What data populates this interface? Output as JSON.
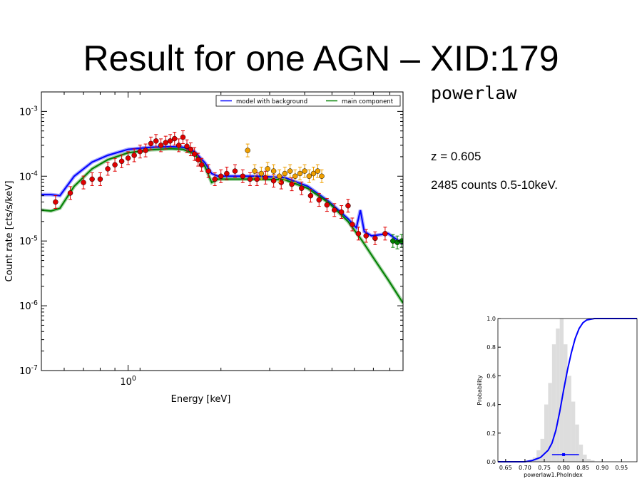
{
  "slide": {
    "title": "Result for one AGN – XID:179",
    "model_name": "powerlaw",
    "redshift_text": "z = 0.605",
    "counts_text": "2485 counts 0.5-10keV."
  },
  "chart_data": [
    {
      "type": "line",
      "xlabel": "Energy [keV]",
      "ylabel": "Count rate [cts/s/keV]",
      "xscale": "log",
      "yscale": "log",
      "xlim": [
        0.5,
        9
      ],
      "ylim": [
        1e-07,
        0.002
      ],
      "x_ticks": [
        {
          "value": 1,
          "label": "10^0"
        }
      ],
      "y_ticks": [
        {
          "value": 1e-07,
          "label": "10^-7"
        },
        {
          "value": 1e-06,
          "label": "10^-6"
        },
        {
          "value": 1e-05,
          "label": "10^-5"
        },
        {
          "value": 0.0001,
          "label": "10^-4"
        },
        {
          "value": 0.001,
          "label": "10^-3"
        }
      ],
      "legend_position": "top-right",
      "series": [
        {
          "name": "model with background",
          "color": "#0000ff",
          "x": [
            0.5,
            0.54,
            0.58,
            0.65,
            0.75,
            0.85,
            1.0,
            1.2,
            1.4,
            1.55,
            1.7,
            1.85,
            1.95,
            2.05,
            2.3,
            2.8,
            3.5,
            4.2,
            5.0,
            5.8,
            6.2,
            6.4,
            6.6,
            7.0,
            8.0,
            9.0
          ],
          "y": [
            5.2e-05,
            5.2e-05,
            5e-05,
            0.0001,
            0.000165,
            0.00021,
            0.00026,
            0.00028,
            0.000285,
            0.00028,
            0.00024,
            0.00016,
            0.00011,
            0.0001,
            0.0001,
            0.0001,
            9.5e-05,
            7e-05,
            4e-05,
            2.2e-05,
            1.6e-05,
            3e-05,
            1.4e-05,
            1.2e-05,
            1.3e-05,
            9e-06
          ]
        },
        {
          "name": "main component",
          "color": "#008000",
          "x": [
            0.5,
            0.54,
            0.58,
            0.65,
            0.75,
            0.85,
            1.0,
            1.2,
            1.4,
            1.55,
            1.7,
            1.85,
            1.95,
            2.05,
            2.3,
            2.8,
            3.5,
            4.2,
            5.0,
            5.8,
            6.5,
            7.2,
            8.0,
            9.0
          ],
          "y": [
            3e-05,
            2.9e-05,
            3.2e-05,
            7e-05,
            0.00013,
            0.00018,
            0.00023,
            0.000255,
            0.000265,
            0.00026,
            0.00022,
            0.00014,
            8e-05,
            9e-05,
            9e-05,
            9e-05,
            8.8e-05,
            6.5e-05,
            3.8e-05,
            2e-05,
            1e-05,
            5e-06,
            2.5e-06,
            1.1e-06
          ]
        }
      ],
      "data_points": [
        {
          "color": "#e00000",
          "x": [
            0.56,
            0.63,
            0.7,
            0.75,
            0.8,
            0.85,
            0.9,
            0.95,
            1.0,
            1.05,
            1.1,
            1.15,
            1.2,
            1.25,
            1.3,
            1.35,
            1.4,
            1.45,
            1.5,
            1.55,
            1.6,
            1.65,
            1.7,
            1.75,
            1.8,
            1.9,
            2.0,
            2.1,
            2.2,
            2.35,
            2.5,
            2.65,
            2.8,
            3.0,
            3.2,
            3.4,
            3.7,
            4.0,
            4.3,
            4.6,
            4.9,
            5.2,
            5.5,
            5.8,
            6.0,
            6.3,
            6.7,
            7.2,
            7.8
          ],
          "y": [
            4e-05,
            5.5e-05,
            8e-05,
            9e-05,
            9e-05,
            0.00013,
            0.00015,
            0.00017,
            0.00019,
            0.00021,
            0.00024,
            0.00025,
            0.00032,
            0.00035,
            0.0003,
            0.00033,
            0.00035,
            0.00038,
            0.0003,
            0.0004,
            0.00029,
            0.00026,
            0.00022,
            0.00018,
            0.00015,
            0.00012,
            9e-05,
            0.0001,
            0.00011,
            0.00012,
            0.0001,
            9e-05,
            9e-05,
            9.5e-05,
            8.5e-05,
            8e-05,
            7.5e-05,
            6.5e-05,
            5e-05,
            4.3e-05,
            3.6e-05,
            3e-05,
            2.8e-05,
            3.5e-05,
            1.8e-05,
            1.3e-05,
            1.2e-05,
            1.1e-05,
            1.3e-05
          ]
        },
        {
          "color": "#f0a000",
          "x": [
            2.6,
            2.75,
            2.9,
            3.05,
            3.2,
            3.35,
            3.5,
            3.65,
            3.8,
            3.95,
            4.1,
            4.25,
            4.4,
            4.55,
            4.7
          ],
          "y": [
            0.00025,
            0.00012,
            0.00011,
            0.00013,
            0.00012,
            0.0001,
            0.00011,
            0.00012,
            0.0001,
            0.00011,
            0.00012,
            0.0001,
            0.00011,
            0.00012,
            0.0001
          ]
        },
        {
          "color": "#008000",
          "x": [
            8.3,
            8.6,
            8.9
          ],
          "y": [
            1e-05,
            9.5e-06,
            1e-05
          ]
        }
      ]
    },
    {
      "type": "line",
      "xlabel": "powerlaw1.PhoIndex",
      "ylabel": "Probability",
      "xlim": [
        0.63,
        0.99
      ],
      "ylim": [
        0,
        1
      ],
      "x_ticks": [
        0.65,
        0.7,
        0.75,
        0.8,
        0.85,
        0.9,
        0.95
      ],
      "y_ticks": [
        0.0,
        0.2,
        0.4,
        0.6,
        0.8,
        1.0
      ],
      "histogram": {
        "color": "#dddddd",
        "bin_edges": [
          0.71,
          0.72,
          0.73,
          0.74,
          0.75,
          0.76,
          0.77,
          0.78,
          0.79,
          0.8,
          0.81,
          0.82,
          0.83,
          0.84,
          0.85,
          0.86,
          0.87,
          0.88
        ],
        "heights": [
          0.01,
          0.03,
          0.08,
          0.16,
          0.4,
          0.55,
          0.82,
          0.93,
          1.0,
          0.82,
          0.6,
          0.42,
          0.26,
          0.12,
          0.05,
          0.02,
          0.01
        ]
      },
      "cdf": {
        "color": "#0000ff",
        "x": [
          0.63,
          0.7,
          0.72,
          0.74,
          0.76,
          0.77,
          0.78,
          0.79,
          0.8,
          0.81,
          0.82,
          0.83,
          0.84,
          0.85,
          0.86,
          0.88,
          0.9,
          0.99
        ],
        "y": [
          0.0,
          0.0,
          0.01,
          0.03,
          0.08,
          0.13,
          0.22,
          0.35,
          0.5,
          0.64,
          0.76,
          0.86,
          0.93,
          0.97,
          0.99,
          1.0,
          1.0,
          1.0
        ]
      },
      "estimate": {
        "value": 0.8,
        "err_low": 0.77,
        "err_high": 0.84,
        "y": 0.05,
        "color": "#0000ff"
      }
    }
  ]
}
